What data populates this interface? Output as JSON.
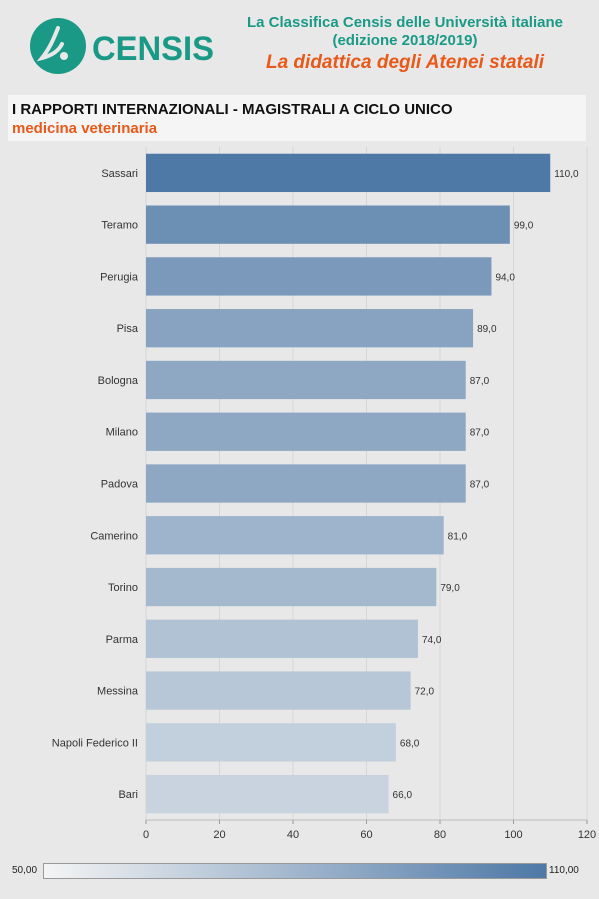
{
  "header": {
    "logo_text": "CENSIS",
    "line1": "La Classifica Censis delle Università italiane",
    "line2": "(edizione 2018/2019)",
    "line3": "La didattica degli Atenei statali"
  },
  "title": {
    "main": "I RAPPORTI INTERNAZIONALI - MAGISTRALI A CICLO UNICO",
    "sub": "medicina veterinaria"
  },
  "colors": {
    "brand_green": "#1a9a86",
    "accent_orange": "#e8591a",
    "scale_low": "#f4f4f4",
    "scale_high": "#4e78a6"
  },
  "chart_data": {
    "type": "bar",
    "orientation": "horizontal",
    "categories": [
      "Sassari",
      "Teramo",
      "Perugia",
      "Pisa",
      "Bologna",
      "Milano",
      "Padova",
      "Camerino",
      "Torino",
      "Parma",
      "Messina",
      "Napoli Federico II",
      "Bari"
    ],
    "values": [
      110,
      99,
      94,
      89,
      87,
      87,
      87,
      81,
      79,
      74,
      72,
      68,
      66
    ],
    "value_labels": [
      "110,0",
      "99,0",
      "94,0",
      "89,0",
      "87,0",
      "87,0",
      "87,0",
      "81,0",
      "79,0",
      "74,0",
      "72,0",
      "68,0",
      "66,0"
    ],
    "xlim": [
      0,
      120
    ],
    "xticks": [
      0,
      20,
      40,
      60,
      80,
      100,
      120
    ],
    "grid": true,
    "color_scale": {
      "min": 50,
      "max": 110,
      "min_label": "50,00",
      "max_label": "110,00"
    }
  }
}
